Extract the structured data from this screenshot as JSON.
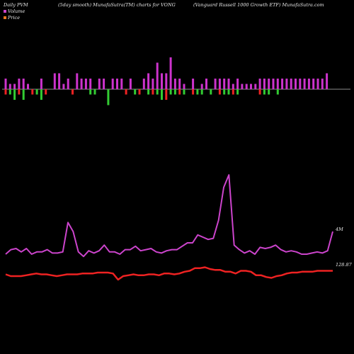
{
  "header": {
    "left": "Daily PVM",
    "middle": "(5day smooth) MunafaSutra(TM) charts for VONG",
    "right": "(Vanguard Russell 1000  Growth ETF) MunafaSutra.com"
  },
  "legend": [
    {
      "label": "Volume",
      "color": "#cc44cc"
    },
    {
      "label": "Price",
      "color": "#e87722"
    }
  ],
  "axis_labels": {
    "volume_value": "4M",
    "price_value": "128.87"
  },
  "chart_data": [
    {
      "type": "bar",
      "title": "PVM bars",
      "x": [
        1,
        2,
        3,
        4,
        5,
        6,
        7,
        8,
        9,
        10,
        11,
        12,
        13,
        14,
        15,
        16,
        17,
        18,
        19,
        20,
        21,
        22,
        23,
        24,
        25,
        26,
        27,
        28,
        29,
        30,
        31,
        32,
        33,
        34,
        35,
        36,
        37,
        38,
        39,
        40,
        41,
        42,
        43,
        44,
        45,
        46,
        47,
        48,
        49,
        50,
        51,
        52,
        53,
        54,
        55,
        56,
        57,
        58,
        59,
        60,
        61,
        62,
        63,
        64,
        65,
        66,
        67,
        68,
        69,
        70,
        71,
        72,
        73
      ],
      "positive": [
        2,
        1,
        1,
        2,
        2,
        1,
        0,
        0,
        2,
        0,
        0,
        3,
        3,
        1,
        2,
        0,
        3,
        2,
        2,
        2,
        0,
        2,
        2,
        0,
        2,
        2,
        2,
        0,
        2,
        0,
        0,
        2,
        3,
        2,
        5,
        3,
        3,
        6,
        2,
        2,
        1,
        0,
        2,
        0,
        1,
        2,
        0,
        2,
        2,
        2,
        2,
        1,
        2,
        1,
        1,
        1,
        1,
        2,
        2,
        2,
        2,
        2,
        2,
        2,
        2,
        2,
        2,
        2,
        2,
        2,
        2,
        2,
        3
      ],
      "negative": [
        1,
        1,
        2,
        1,
        2,
        0,
        1,
        1,
        2,
        1,
        0,
        0,
        0,
        0,
        0,
        1,
        0,
        0,
        0,
        1,
        1,
        0,
        0,
        3,
        0,
        0,
        0,
        1,
        0,
        1,
        1,
        0,
        1,
        1,
        1,
        2,
        2,
        1,
        1,
        1,
        1,
        0,
        1,
        1,
        1,
        0,
        1,
        0,
        1,
        1,
        1,
        1,
        1,
        0,
        0,
        0,
        0,
        1,
        1,
        1,
        0,
        1,
        0,
        0,
        0,
        0,
        0,
        0,
        0,
        0,
        0,
        0,
        0
      ],
      "up_color": "#cc33cc",
      "down_color_red": "#ee2222",
      "down_color_green": "#33cc33"
    },
    {
      "type": "line",
      "series": [
        {
          "name": "Volume",
          "color": "#cc44cc",
          "values": [
            20,
            24,
            25,
            22,
            25,
            20,
            22,
            22,
            24,
            21,
            21,
            22,
            48,
            40,
            22,
            18,
            23,
            21,
            23,
            28,
            22,
            22,
            20,
            24,
            24,
            27,
            23,
            24,
            25,
            22,
            21,
            23,
            24,
            24,
            27,
            30,
            30,
            37,
            35,
            33,
            34,
            50,
            79,
            90,
            28,
            24,
            21,
            23,
            20,
            26,
            25,
            26,
            28,
            24,
            22,
            23,
            22,
            20,
            20,
            21,
            22,
            21,
            23,
            40
          ]
        },
        {
          "name": "Price",
          "color": "#ee2222",
          "values": [
            14,
            12,
            12,
            12,
            13,
            14,
            15,
            14,
            14,
            13,
            12,
            13,
            14,
            14,
            14,
            15,
            15,
            15,
            16,
            16,
            16,
            15,
            8,
            12,
            13,
            14,
            13,
            13,
            14,
            14,
            13,
            15,
            15,
            14,
            15,
            17,
            18,
            21,
            21,
            22,
            20,
            19,
            19,
            17,
            17,
            15,
            18,
            18,
            17,
            13,
            13,
            11,
            10,
            12,
            13,
            15,
            16,
            16,
            17,
            17,
            17,
            18,
            18,
            18,
            18
          ]
        }
      ]
    }
  ]
}
